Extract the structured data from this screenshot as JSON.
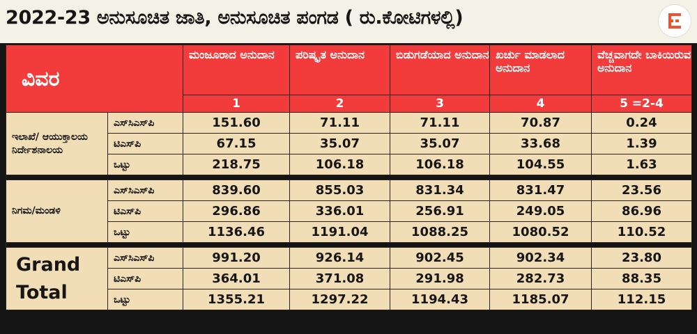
{
  "title": "2022-23 ಅನುಸೂಚಿತ ಜಾತಿ, ಅನುಸೂಚಿತ ಪಂಗಡ  ( ರು.ಕೋಟಿಗಳಲ್ಲಿ)",
  "logo_icon": "e-logo-icon",
  "accent_color": "#f23c3c",
  "cell_color": "#f1ddb6",
  "header": {
    "row_label": "ವಿವರ",
    "columns": [
      {
        "label": "ಮಂಜೂರಾದ ಅನುದಾನ",
        "number": "1"
      },
      {
        "label": "ಪರಿಷ್ಕೃತ ಅನುದಾನ",
        "number": "2"
      },
      {
        "label": "ಬಿಡುಗಡೆಯಾದ ಅನುದಾನ",
        "number": "3"
      },
      {
        "label": "ಖರ್ಚು ಮಾಡಲಾದ ಅನುದಾನ",
        "number": "4"
      },
      {
        "label": "ವೆಚ್ಚವಾಗದೇ ಬಾಕಿಯಿರುವ ಅನುದಾನ",
        "number": "5 =2-4"
      }
    ]
  },
  "groups": [
    {
      "name": "ಇಲಾಖೆ/ ಆಯುಕ್ತಾಲಯ ನಿರ್ದೇಶನಾಲಯ",
      "rows": [
        {
          "label": "ಎಸ್‌ಸಿಎಸ್‌ಪಿ",
          "values": [
            "151.60",
            "71.11",
            "71.11",
            "70.87",
            "0.24"
          ]
        },
        {
          "label": "ಟಿಎಸ್‌ಪಿ",
          "values": [
            "67.15",
            "35.07",
            "35.07",
            "33.68",
            "1.39"
          ]
        },
        {
          "label": "ಒಟ್ಟು",
          "values": [
            "218.75",
            "106.18",
            "106.18",
            "104.55",
            "1.63"
          ]
        }
      ]
    },
    {
      "name": "ನಿಗಮ/ಮಂಡಳಿ",
      "rows": [
        {
          "label": "ಎಸ್‌ಸಿಎಸ್‌ಪಿ",
          "values": [
            "839.60",
            "855.03",
            "831.34",
            "831.47",
            "23.56"
          ]
        },
        {
          "label": "ಟಿಎಸ್‌ಪಿ",
          "values": [
            "296.86",
            "336.01",
            "256.91",
            "249.05",
            "86.96"
          ]
        },
        {
          "label": "ಒಟ್ಟು",
          "values": [
            "1136.46",
            "1191.04",
            "1088.25",
            "1080.52",
            "110.52"
          ]
        }
      ]
    },
    {
      "name": "Grand Total",
      "rows": [
        {
          "label": "ಎಸ್‌ಸಿಎಸ್‌ಪಿ",
          "values": [
            "991.20",
            "926.14",
            "902.45",
            "902.34",
            "23.80"
          ]
        },
        {
          "label": "ಟಿಎಸ್‌ಪಿ",
          "values": [
            "364.01",
            "371.08",
            "291.98",
            "282.73",
            "88.35"
          ]
        },
        {
          "label": "ಒಟ್ಟು",
          "values": [
            "1355.21",
            "1297.22",
            "1194.43",
            "1185.07",
            "112.15"
          ]
        }
      ]
    }
  ]
}
